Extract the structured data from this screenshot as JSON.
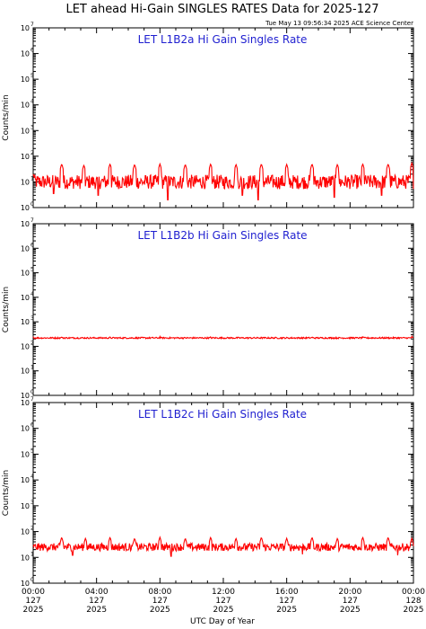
{
  "header": {
    "title": "LET ahead Hi-Gain SINGLES RATES Data for 2025-127",
    "timestamp": "Tue May 13 09:56:34 2025 ACE Science Center"
  },
  "colors": {
    "series": "#ff0000",
    "panel_label": "#1f1fd0",
    "axes": "#000000"
  },
  "chart_data": [
    {
      "type": "line",
      "title": "LET L1B2a Hi Gain Singles Rate",
      "ylabel": "Counts/min",
      "yscale": "log",
      "ylim": [
        1,
        10000000
      ],
      "xlim": [
        0,
        24
      ],
      "baseline": 10,
      "noise": 0.28,
      "spikes": [
        {
          "x": 0.0,
          "y": 20
        },
        {
          "x": 1.8,
          "y": 50
        },
        {
          "x": 3.2,
          "y": 45
        },
        {
          "x": 4.85,
          "y": 50
        },
        {
          "x": 6.4,
          "y": 48
        },
        {
          "x": 8.0,
          "y": 50
        },
        {
          "x": 9.6,
          "y": 48
        },
        {
          "x": 11.2,
          "y": 50
        },
        {
          "x": 12.8,
          "y": 48
        },
        {
          "x": 14.4,
          "y": 50
        },
        {
          "x": 16.0,
          "y": 48
        },
        {
          "x": 17.6,
          "y": 50
        },
        {
          "x": 19.2,
          "y": 48
        },
        {
          "x": 20.8,
          "y": 50
        },
        {
          "x": 22.4,
          "y": 50
        },
        {
          "x": 23.9,
          "y": 55
        }
      ],
      "dips": [
        {
          "x": 1.3,
          "y": 3.5
        },
        {
          "x": 4.1,
          "y": 3
        },
        {
          "x": 8.5,
          "y": 2
        },
        {
          "x": 13.2,
          "y": 3
        },
        {
          "x": 14.2,
          "y": 2
        },
        {
          "x": 19.0,
          "y": 2.5
        },
        {
          "x": 22.0,
          "y": 3
        }
      ]
    },
    {
      "type": "line",
      "title": "LET L1B2b Hi Gain Singles Rate",
      "ylabel": "Counts/min",
      "yscale": "log",
      "ylim": [
        1,
        10000000
      ],
      "xlim": [
        0,
        24
      ],
      "baseline": 220,
      "noise": 0.03,
      "spikes": [
        {
          "x": 0.0,
          "y": 250
        },
        {
          "x": 1.8,
          "y": 250
        },
        {
          "x": 4.85,
          "y": 250
        },
        {
          "x": 8.0,
          "y": 250
        },
        {
          "x": 11.2,
          "y": 250
        },
        {
          "x": 14.4,
          "y": 250
        },
        {
          "x": 17.6,
          "y": 250
        },
        {
          "x": 20.8,
          "y": 250
        },
        {
          "x": 23.9,
          "y": 260
        }
      ],
      "dips": []
    },
    {
      "type": "line",
      "title": "LET L1B2c Hi Gain Singles Rate",
      "ylabel": "Counts/min",
      "yscale": "log",
      "ylim": [
        1,
        10000000
      ],
      "xlim": [
        0,
        24
      ],
      "baseline": 25,
      "noise": 0.15,
      "spikes": [
        {
          "x": 0.0,
          "y": 30
        },
        {
          "x": 1.8,
          "y": 60
        },
        {
          "x": 3.3,
          "y": 55
        },
        {
          "x": 4.85,
          "y": 60
        },
        {
          "x": 6.4,
          "y": 55
        },
        {
          "x": 8.0,
          "y": 60
        },
        {
          "x": 9.6,
          "y": 55
        },
        {
          "x": 11.2,
          "y": 60
        },
        {
          "x": 12.8,
          "y": 55
        },
        {
          "x": 14.4,
          "y": 60
        },
        {
          "x": 16.0,
          "y": 55
        },
        {
          "x": 17.6,
          "y": 60
        },
        {
          "x": 19.2,
          "y": 55
        },
        {
          "x": 20.8,
          "y": 60
        },
        {
          "x": 22.4,
          "y": 60
        },
        {
          "x": 23.9,
          "y": 55
        }
      ],
      "dips": [
        {
          "x": 2.5,
          "y": 12
        },
        {
          "x": 8.7,
          "y": 11
        },
        {
          "x": 17.0,
          "y": 13
        },
        {
          "x": 23.0,
          "y": 12
        }
      ]
    }
  ],
  "x_axis": {
    "label": "UTC Day of Year",
    "ticks": [
      {
        "x": 0,
        "time": "00:00",
        "day": "127",
        "year": "2025"
      },
      {
        "x": 4,
        "time": "04:00",
        "day": "127",
        "year": "2025"
      },
      {
        "x": 8,
        "time": "08:00",
        "day": "127",
        "year": "2025"
      },
      {
        "x": 12,
        "time": "12:00",
        "day": "127",
        "year": "2025"
      },
      {
        "x": 16,
        "time": "16:00",
        "day": "127",
        "year": "2025"
      },
      {
        "x": 20,
        "time": "20:00",
        "day": "127",
        "year": "2025"
      },
      {
        "x": 24,
        "time": "00:00",
        "day": "128",
        "year": "2025"
      }
    ]
  },
  "y_axis": {
    "ticks": [
      {
        "value": 1,
        "base": "10",
        "exp": "0"
      },
      {
        "value": 10,
        "base": "10",
        "exp": "1"
      },
      {
        "value": 100,
        "base": "10",
        "exp": "2"
      },
      {
        "value": 1000,
        "base": "10",
        "exp": "3"
      },
      {
        "value": 10000,
        "base": "10",
        "exp": "4"
      },
      {
        "value": 100000,
        "base": "10",
        "exp": "5"
      },
      {
        "value": 1000000,
        "base": "10",
        "exp": "6"
      },
      {
        "value": 10000000,
        "base": "10",
        "exp": "7"
      }
    ]
  }
}
